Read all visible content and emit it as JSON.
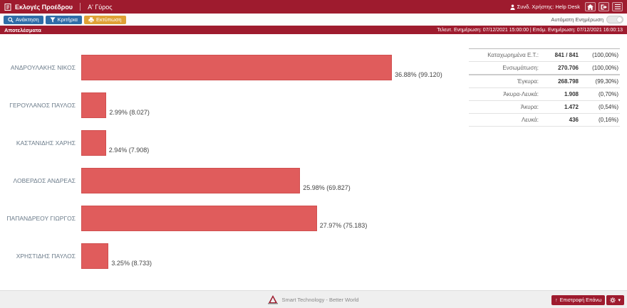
{
  "header": {
    "app_title": "Εκλογές Προέδρου",
    "round_title": "Α' Γύρος",
    "user_label": "Συνδ. Χρήστης: Help Desk"
  },
  "toolbar": {
    "retrieve_label": "Ανάκτηση",
    "criteria_label": "Κριτήρια",
    "print_label": "Εκτύπωση",
    "auto_update_label": "Αυτόματη Ενημέρωση"
  },
  "results_bar": {
    "title": "Αποτελέσματα",
    "update_info": "Τελευτ. Ενημέρωση: 07/12/2021 15:00:00  |  Επόμ. Ενημέρωση: 07/12/2021 16:00:13"
  },
  "chart_data": {
    "type": "bar",
    "orientation": "horizontal",
    "title": "Αποτελέσματα",
    "categories": [
      "ΑΝΔΡΟΥΛΑΚΗΣ ΝΙΚΟΣ",
      "ΓΕΡΟΥΛΑΝΟΣ ΠΑΥΛΟΣ",
      "ΚΑΣΤΑΝΙΔΗΣ ΧΑΡΗΣ",
      "ΛΟΒΕΡΔΟΣ ΑΝΔΡΕΑΣ",
      "ΠΑΠΑΝΔΡΕΟΥ ΓΙΩΡΓΟΣ",
      "ΧΡΗΣΤΙΔΗΣ ΠΑΥΛΟΣ"
    ],
    "values": [
      36.88,
      2.99,
      2.94,
      25.98,
      27.97,
      3.25
    ],
    "votes": [
      99120,
      8027,
      7908,
      69827,
      75183,
      8733
    ],
    "labels": [
      "36.88% (99.120)",
      "2.99% (8.027)",
      "2.94% (7.908)",
      "25.98% (69.827)",
      "27.97% (75.183)",
      "3.25% (8.733)"
    ],
    "xlim": [
      0,
      46
    ],
    "bar_color": "#e05c5c",
    "legend": "none",
    "grid": "off"
  },
  "stats": {
    "rows": [
      {
        "label": "Καταχωρημένα Ε.Τ.:",
        "value": "841 / 841",
        "pct": "(100,00%)"
      },
      {
        "label": "Ενσωμάτωση:",
        "value": "270.706",
        "pct": "(100,00%)"
      },
      {
        "label": "Έγκυρα:",
        "value": "268.798",
        "pct": "(99,30%)"
      },
      {
        "label": "Άκυρα-Λευκά:",
        "value": "1.908",
        "pct": "(0,70%)"
      },
      {
        "label": "Άκυρα:",
        "value": "1.472",
        "pct": "(0,54%)"
      },
      {
        "label": "Λευκά:",
        "value": "436",
        "pct": "(0,16%)"
      }
    ]
  },
  "footer": {
    "tagline": "Smart Technology - Better World",
    "back_to_top_label": "Επιστροφή Επάνω"
  },
  "colors": {
    "header_bg": "#9e1b2e",
    "bar_color": "#e05c5c",
    "button_blue": "#2f6da8",
    "button_orange": "#dfa136"
  }
}
